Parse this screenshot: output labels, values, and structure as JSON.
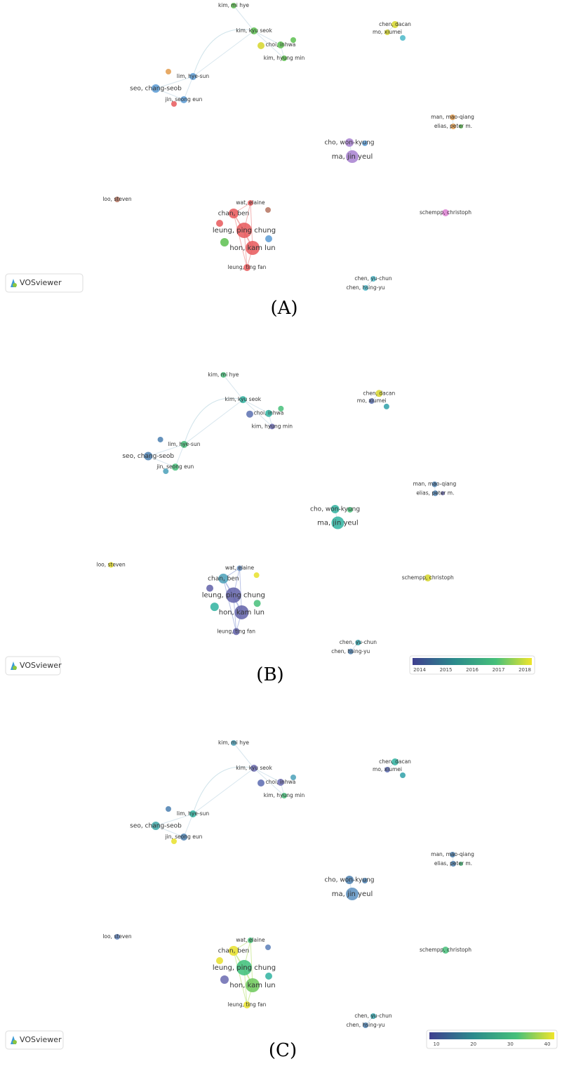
{
  "panels": [
    {
      "label": "(A)",
      "logo": "VOSviewer",
      "nodes": [
        "kim, mi hye",
        "kim, kyu seok",
        "choi, inhwa",
        "kim, hyung min",
        "chen, dacan",
        "mo, xiumei",
        "lim, hye-sun",
        "seo, chang-seob",
        "jin, seong eun",
        "man, mao-qiang",
        "elias, peter m.",
        "cho, won-kyung",
        "ma, jin yeul",
        "loo, steven",
        "wat, elaine",
        "chan, ben",
        "leung, ping chung",
        "hon, kam lun",
        "leung, ting fan",
        "schempp, christoph",
        "chen, yu-chun",
        "chen, hsing-yu"
      ]
    },
    {
      "label": "(B)",
      "logo": "VOSviewer",
      "nodes": [
        "kim, mi hye",
        "kim, kyu seok",
        "choi, inhwa",
        "kim, hyung min",
        "chen, dacan",
        "mo, xiumei",
        "lim, hye-sun",
        "seo, chang-seob",
        "jin, seong eun",
        "man, mao-qiang",
        "elias, peter m.",
        "cho, won-kyung",
        "ma, jin yeul",
        "loo, steven",
        "wat, elaine",
        "chan, ben",
        "leung, ping chung",
        "hon, kam lun",
        "leung, ting fan",
        "schempp, christoph",
        "chen, yu-chun",
        "chen, hsing-yu"
      ],
      "colorbar": {
        "ticks": [
          2014,
          2015,
          2016,
          2017,
          2018
        ]
      }
    },
    {
      "label": "(C)",
      "logo": "VOSviewer",
      "nodes": [
        "kim, mi hye",
        "kim, kyu seok",
        "choi, inhwa",
        "kim, hyung min",
        "chen, dacan",
        "mo, xiumei",
        "lim, hye-sun",
        "seo, chang-seob",
        "jin, seong eun",
        "man, mao-qiang",
        "elias, peter m.",
        "cho, won-kyung",
        "ma, jin yeul",
        "loo, steven",
        "wat, elaine",
        "chan, ben",
        "leung, ping chung",
        "hon, kam lun",
        "leung, ting fan",
        "schempp, christoph",
        "chen, yu-chun",
        "chen, hsing-yu"
      ],
      "colorbar": {
        "ticks": [
          10,
          20,
          30,
          40
        ]
      }
    }
  ]
}
